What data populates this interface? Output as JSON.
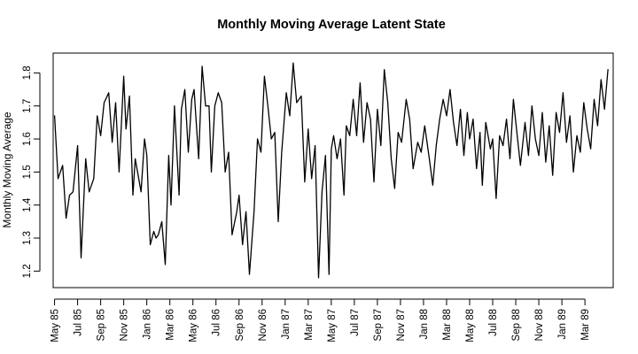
{
  "chart_data": {
    "type": "line",
    "title": "Monthly Moving Average Latent State",
    "xlabel": "",
    "ylabel": "Monthly Moving Average",
    "ylim": [
      1.15,
      1.86
    ],
    "yticks": [
      1.2,
      1.3,
      1.4,
      1.5,
      1.6,
      1.7,
      1.8
    ],
    "ytick_labels": [
      "1.2",
      "1.3",
      "1.4",
      "1.5",
      "1.6",
      "1.7",
      "1.8"
    ],
    "xlim": [
      -0.12,
      48.45
    ],
    "xticks": [
      0,
      2,
      4,
      6,
      8,
      10,
      12,
      14,
      16,
      18,
      20,
      22,
      24,
      26,
      28,
      30,
      32,
      34,
      36,
      38,
      40,
      42,
      44,
      46
    ],
    "xtick_labels": [
      "May 85",
      "Jul 85",
      "Sep 85",
      "Nov 85",
      "Jan 86",
      "Mar 86",
      "May 86",
      "Jul 86",
      "Sep 86",
      "Nov 86",
      "Jan 87",
      "Mar 87",
      "May 87",
      "Jul 87",
      "Sep 87",
      "Nov 87",
      "Jan 88",
      "Mar 88",
      "May 88",
      "Jul 88",
      "Sep 88",
      "Nov 88",
      "Jan 89",
      "Mar 89"
    ],
    "series": [
      {
        "name": "Monthly Moving Average",
        "x": [
          0,
          0.3,
          0.7,
          1.0,
          1.3,
          1.6,
          2.0,
          2.3,
          2.7,
          3.0,
          3.4,
          3.7,
          4.0,
          4.3,
          4.7,
          5.0,
          5.3,
          5.6,
          6.0,
          6.2,
          6.5,
          6.8,
          7.0,
          7.5,
          7.8,
          8.0,
          8.3,
          8.6,
          8.8,
          9.0,
          9.3,
          9.6,
          9.9,
          10.1,
          10.4,
          10.8,
          11.0,
          11.3,
          11.6,
          11.9,
          12.1,
          12.5,
          12.8,
          13.1,
          13.4,
          13.6,
          13.9,
          14.2,
          14.5,
          14.8,
          15.1,
          15.4,
          15.8,
          16.0,
          16.3,
          16.6,
          16.9,
          17.3,
          17.6,
          17.9,
          18.2,
          18.5,
          18.8,
          19.1,
          19.4,
          19.7,
          20.1,
          20.4,
          20.7,
          21.0,
          21.4,
          21.7,
          22.0,
          22.3,
          22.6,
          22.9,
          23.2,
          23.5,
          23.8,
          24.0,
          24.2,
          24.5,
          24.8,
          25.1,
          25.3,
          25.6,
          25.9,
          26.2,
          26.5,
          26.8,
          27.1,
          27.4,
          27.7,
          28.0,
          28.3,
          28.6,
          28.9,
          29.2,
          29.5,
          29.8,
          30.1,
          30.5,
          30.8,
          31.1,
          31.5,
          31.8,
          32.1,
          32.5,
          32.8,
          33.1,
          33.4,
          33.7,
          34.0,
          34.3,
          34.6,
          34.9,
          35.2,
          35.5,
          35.8,
          36.0,
          36.3,
          36.6,
          36.9,
          37.1,
          37.4,
          37.8,
          38.0,
          38.3,
          38.6,
          38.9,
          39.2,
          39.5,
          39.8,
          40.1,
          40.4,
          40.8,
          41.1,
          41.4,
          41.7,
          42.0,
          42.3,
          42.6,
          42.9,
          43.2,
          43.5,
          43.8,
          44.1,
          44.4,
          44.7,
          45.0,
          45.3,
          45.6,
          45.9,
          46.2,
          46.5,
          46.8,
          47.1,
          47.4,
          47.7,
          48.0
        ],
        "values": [
          1.67,
          1.48,
          1.52,
          1.36,
          1.43,
          1.44,
          1.58,
          1.24,
          1.54,
          1.44,
          1.48,
          1.67,
          1.61,
          1.71,
          1.74,
          1.59,
          1.71,
          1.5,
          1.79,
          1.63,
          1.73,
          1.43,
          1.54,
          1.44,
          1.6,
          1.55,
          1.28,
          1.32,
          1.3,
          1.31,
          1.35,
          1.22,
          1.55,
          1.4,
          1.7,
          1.43,
          1.69,
          1.75,
          1.56,
          1.72,
          1.75,
          1.54,
          1.82,
          1.7,
          1.7,
          1.5,
          1.7,
          1.74,
          1.71,
          1.5,
          1.56,
          1.31,
          1.38,
          1.43,
          1.28,
          1.38,
          1.19,
          1.38,
          1.6,
          1.56,
          1.79,
          1.7,
          1.6,
          1.62,
          1.35,
          1.56,
          1.74,
          1.67,
          1.83,
          1.71,
          1.73,
          1.47,
          1.63,
          1.48,
          1.58,
          1.18,
          1.44,
          1.55,
          1.19,
          1.57,
          1.61,
          1.54,
          1.6,
          1.43,
          1.64,
          1.61,
          1.72,
          1.61,
          1.77,
          1.59,
          1.71,
          1.66,
          1.47,
          1.69,
          1.58,
          1.81,
          1.71,
          1.54,
          1.45,
          1.62,
          1.59,
          1.72,
          1.66,
          1.51,
          1.59,
          1.56,
          1.64,
          1.54,
          1.46,
          1.58,
          1.66,
          1.72,
          1.67,
          1.75,
          1.65,
          1.58,
          1.69,
          1.55,
          1.68,
          1.6,
          1.66,
          1.51,
          1.62,
          1.46,
          1.65,
          1.57,
          1.6,
          1.42,
          1.61,
          1.58,
          1.66,
          1.54,
          1.72,
          1.62,
          1.52,
          1.65,
          1.55,
          1.7,
          1.6,
          1.55,
          1.68,
          1.53,
          1.64,
          1.49,
          1.68,
          1.62,
          1.74,
          1.59,
          1.67,
          1.5,
          1.61,
          1.56,
          1.71,
          1.63,
          1.57,
          1.72,
          1.64,
          1.78,
          1.69,
          1.81
        ]
      }
    ]
  }
}
